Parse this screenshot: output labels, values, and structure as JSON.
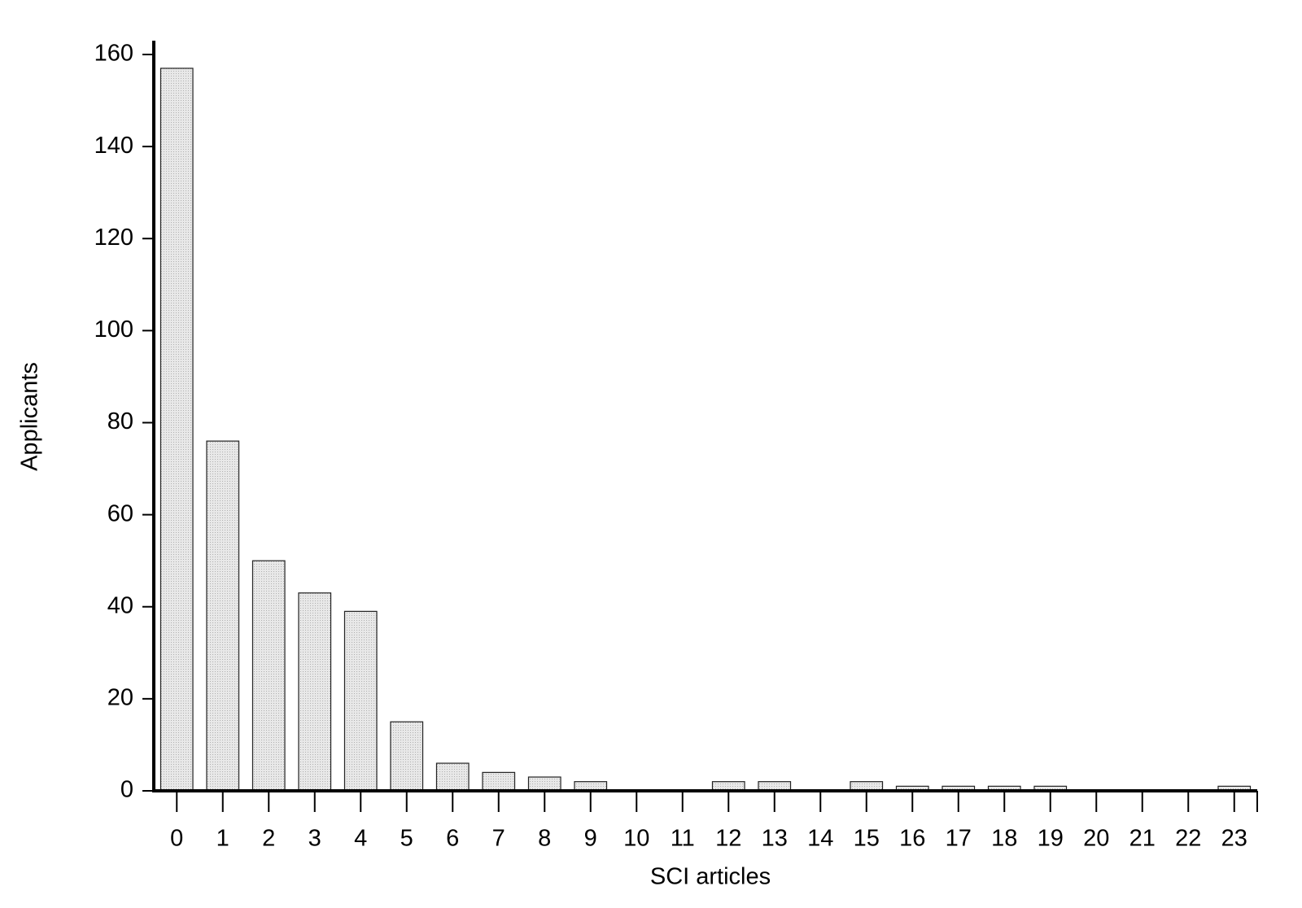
{
  "chart_data": {
    "type": "bar",
    "x_label": "SCI articles",
    "y_label": "Applicants",
    "categories": [
      "0",
      "1",
      "2",
      "3",
      "4",
      "5",
      "6",
      "7",
      "8",
      "9",
      "10",
      "11",
      "12",
      "13",
      "14",
      "15",
      "16",
      "17",
      "18",
      "19",
      "20",
      "21",
      "22",
      "23"
    ],
    "values": [
      157,
      76,
      50,
      43,
      39,
      15,
      6,
      4,
      3,
      2,
      0,
      0,
      2,
      2,
      0,
      2,
      1,
      1,
      1,
      1,
      0,
      0,
      0,
      1
    ],
    "color": "#dcdcdc",
    "ylim": [
      0,
      163
    ],
    "yticks": [
      0,
      20,
      40,
      60,
      80,
      100,
      120,
      140,
      160
    ]
  }
}
